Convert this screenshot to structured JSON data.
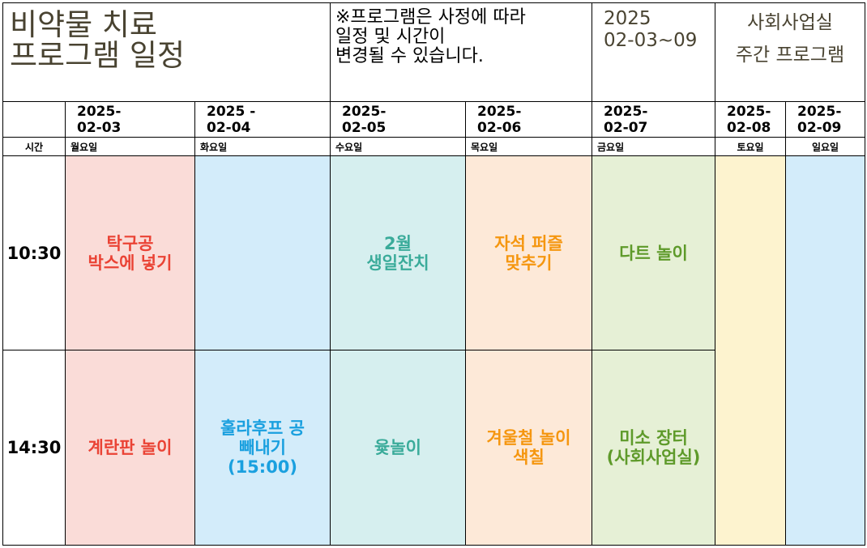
{
  "header": {
    "title": "비약물 치료\n프로그램 일정",
    "notice": "※프로그램은 사정에 따라\n일정 및 시간이\n변경될 수 있습니다.",
    "week": "2025\n02-03~09",
    "department": "사회사업실\n주간 프로그램"
  },
  "time_label": "시간",
  "days": [
    {
      "date": "2025-\n02-03",
      "weekday": "월요일"
    },
    {
      "date": "2025 -\n02-04",
      "weekday": "화요일"
    },
    {
      "date": "2025-\n02-05",
      "weekday": "수요일"
    },
    {
      "date": "2025-\n02-06",
      "weekday": "목요일"
    },
    {
      "date": "2025-\n02-07",
      "weekday": "금요일"
    },
    {
      "date": "2025-\n02-08",
      "weekday": "토요일"
    },
    {
      "date": "2025-\n02-09",
      "weekday": "일요일"
    }
  ],
  "slots": [
    {
      "time": "10:30",
      "programs": [
        "탁구공\n박스에 넣기",
        "",
        "2월\n생일잔치",
        "자석 퍼즐\n맞추기",
        "다트 놀이"
      ]
    },
    {
      "time": "14:30",
      "programs": [
        "계란판 놀이",
        "훌라후프 공\n빼내기\n(15:00)",
        "윷놀이",
        "겨울철 놀이\n색칠",
        "미소 장터\n(사회사업실)"
      ]
    }
  ],
  "colors": {
    "mon_bg": "#fadcd8",
    "mon_text": "#ea4335",
    "tue_bg": "#d3ecfa",
    "tue_text": "#1aa0df",
    "wed_bg": "#d6efef",
    "wed_text": "#3aab9a",
    "thu_bg": "#fde9d8",
    "thu_text": "#f5960f",
    "fri_bg": "#e6f0d6",
    "fri_text": "#5e9a2a",
    "sat_bg": "#fdf3cf",
    "sun_bg": "#d3ecfa"
  }
}
